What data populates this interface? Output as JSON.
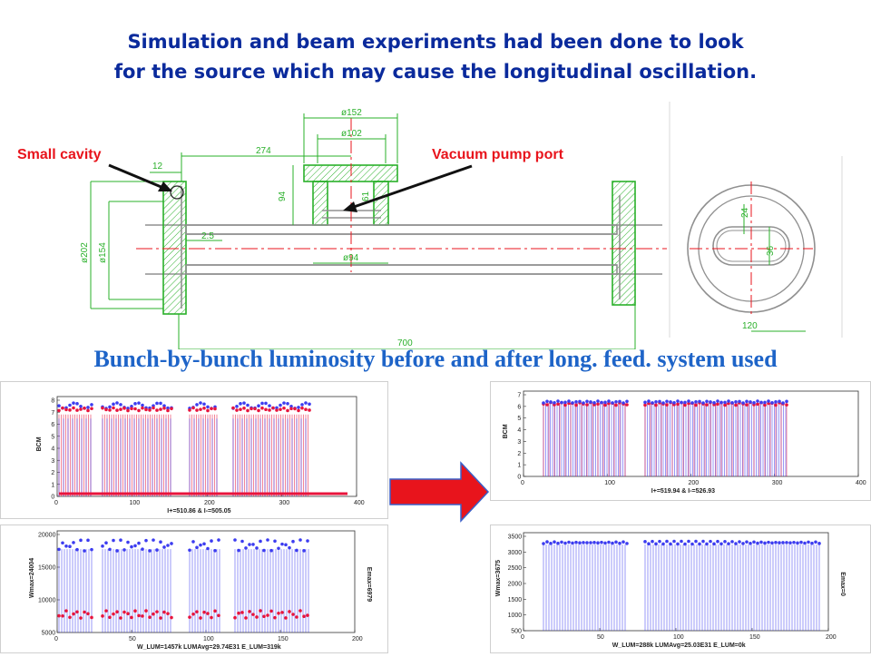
{
  "title": {
    "line1": "Simulation and beam experiments had been done to look",
    "line2": "for the source which may cause the longitudinal oscillation."
  },
  "drawing": {
    "label_left": "Small cavity",
    "label_right": "Vacuum pump port",
    "dims": {
      "d152": "ø152",
      "d102": "ø102",
      "d274": "274",
      "d12": "12",
      "d94v": "94",
      "d61": "61",
      "d25": "2.5",
      "d94h": "ø94",
      "d202": "ø202",
      "d154": "ø154",
      "d700": "700",
      "d24": "24",
      "d36": "36",
      "d120": "120"
    }
  },
  "subheading": "Bunch-by-bunch luminosity before and after long. feed. system used",
  "colors": {
    "blue": "#3c3cf0",
    "red": "#e8143c",
    "title_blue": "#0a2a9c",
    "sub_blue": "#1e64c8",
    "drawing_green": "#2ab02a",
    "arrow_red": "#e8141c"
  },
  "plots": {
    "before_top": {
      "ylabel": "BCM",
      "caption": "I+=510.86  &  I-=505.05",
      "xticks": [
        "0",
        "100",
        "200",
        "300",
        "400"
      ],
      "yticks": [
        "0",
        "1",
        "2",
        "3",
        "4",
        "5",
        "6",
        "7",
        "8"
      ]
    },
    "before_bottom": {
      "ylabel": "Wmax=24004",
      "rlabel": "Emax=6979",
      "caption": "W_LUM=1457k  LUMAvg=29.74E31  E_LUM=319k",
      "xticks": [
        "0",
        "50",
        "100",
        "150",
        "200"
      ],
      "yticks": [
        "5000",
        "10000",
        "15000",
        "20000"
      ]
    },
    "after_top": {
      "ylabel": "BCM",
      "caption": "I+=519.94  &  I-=526.93",
      "xticks": [
        "0",
        "100",
        "200",
        "300",
        "400"
      ],
      "yticks": [
        "0",
        "1",
        "2",
        "3",
        "4",
        "5",
        "6",
        "7"
      ]
    },
    "after_bottom": {
      "ylabel": "Wmax=3675",
      "rlabel": "Emax=0",
      "caption": "W_LUM=288k  LUMAvg=25.03E31  E_LUM=0k",
      "xticks": [
        "0",
        "50",
        "100",
        "150",
        "200"
      ],
      "yticks": [
        "500",
        "1000",
        "1500",
        "2000",
        "2500",
        "3000",
        "3500"
      ]
    }
  }
}
